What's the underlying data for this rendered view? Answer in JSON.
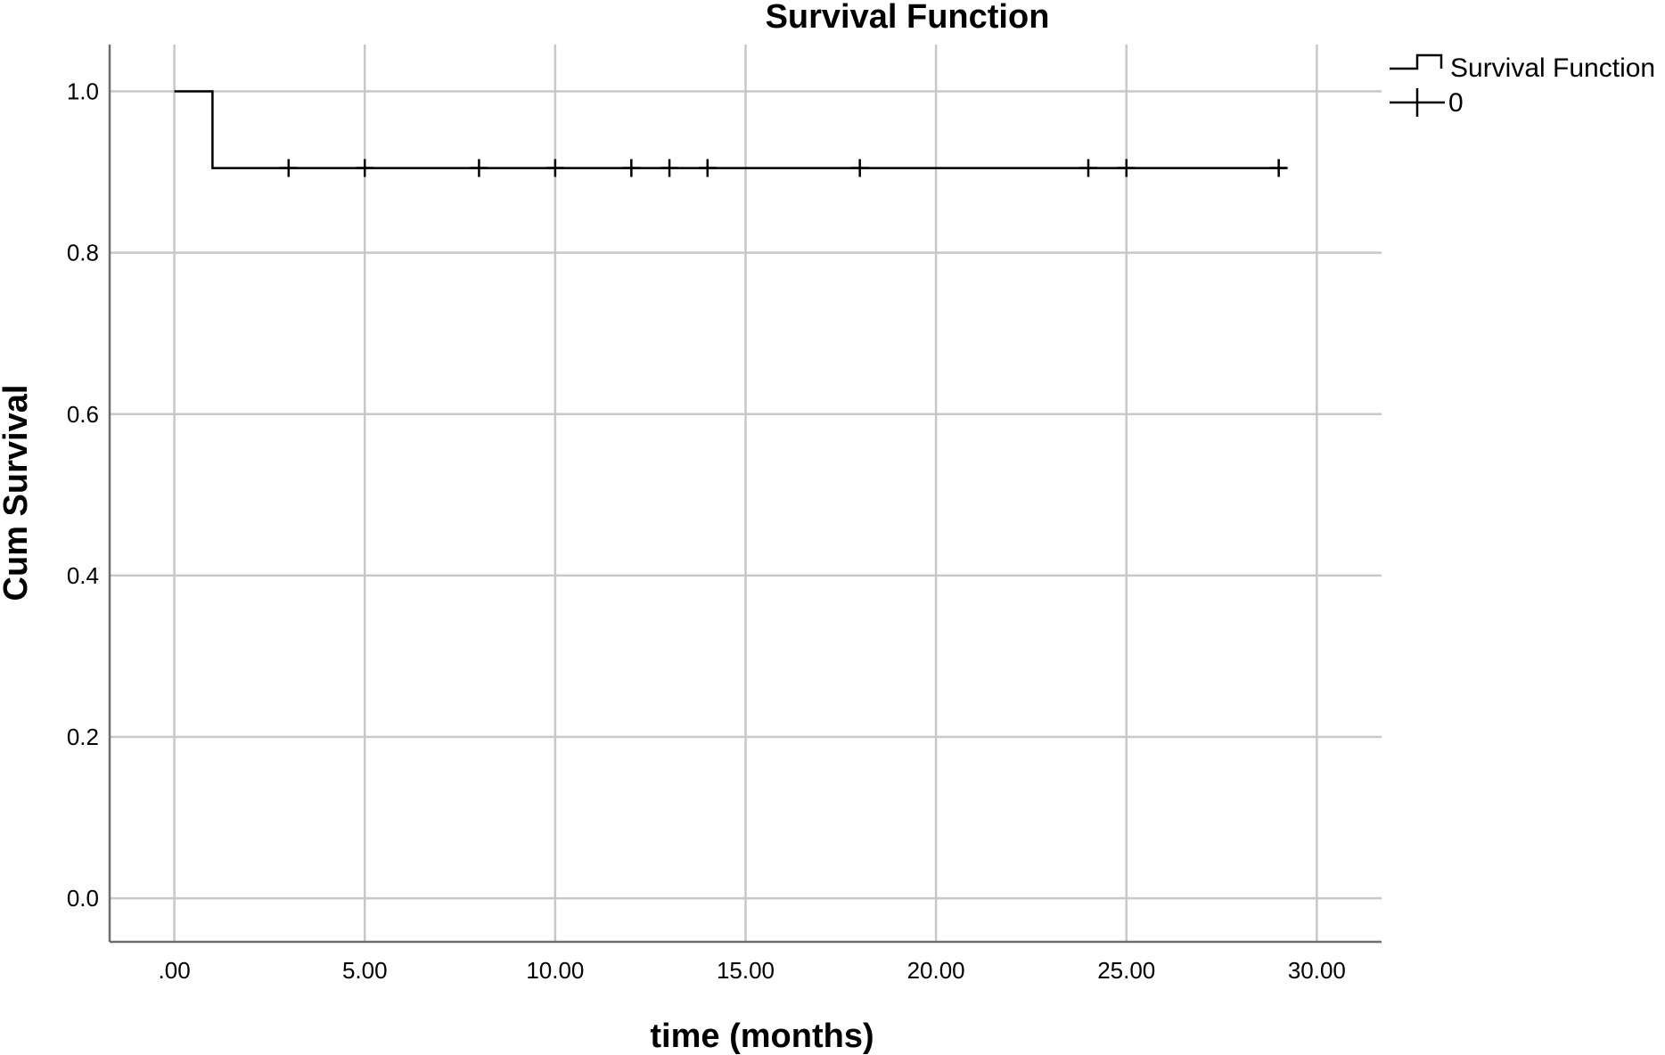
{
  "chart_data": {
    "type": "line",
    "subtype": "kaplan-meier-step",
    "title": "Survival Function",
    "xlabel": "time (months)",
    "ylabel": "Cum Survival",
    "xlim": [
      -1.7,
      31.7
    ],
    "ylim": [
      -0.054,
      1.058
    ],
    "x_ticks": [
      0,
      5,
      10,
      15,
      20,
      25,
      30
    ],
    "x_tick_labels": [
      ".00",
      "5.00",
      "10.00",
      "15.00",
      "20.00",
      "25.00",
      "30.00"
    ],
    "y_ticks": [
      0,
      0.2,
      0.4,
      0.6,
      0.8,
      1.0
    ],
    "y_tick_labels": [
      "0.0",
      "0.2",
      "0.4",
      "0.6",
      "0.8",
      "1.0"
    ],
    "grid": true,
    "legend_position": "top-right-outside",
    "legend": [
      "Survival Function",
      "0"
    ],
    "series": [
      {
        "name": "Survival Function",
        "style": "step",
        "points": [
          {
            "x": 0,
            "y": 1.0
          },
          {
            "x": 1,
            "y": 1.0
          },
          {
            "x": 1,
            "y": 0.905
          },
          {
            "x": 29.2,
            "y": 0.905
          }
        ]
      },
      {
        "name": "0",
        "style": "censor-marks",
        "points": [
          {
            "x": 3,
            "y": 0.905
          },
          {
            "x": 5,
            "y": 0.905
          },
          {
            "x": 8,
            "y": 0.905
          },
          {
            "x": 10,
            "y": 0.905
          },
          {
            "x": 12,
            "y": 0.905
          },
          {
            "x": 13,
            "y": 0.905
          },
          {
            "x": 14,
            "y": 0.905
          },
          {
            "x": 18,
            "y": 0.905
          },
          {
            "x": 24,
            "y": 0.905
          },
          {
            "x": 25,
            "y": 0.905
          },
          {
            "x": 29,
            "y": 0.905
          }
        ]
      }
    ]
  },
  "colors": {
    "series": "#000000",
    "grid": "#c8c8c8",
    "axis": "#6e6e6e",
    "background": "#ffffff"
  }
}
